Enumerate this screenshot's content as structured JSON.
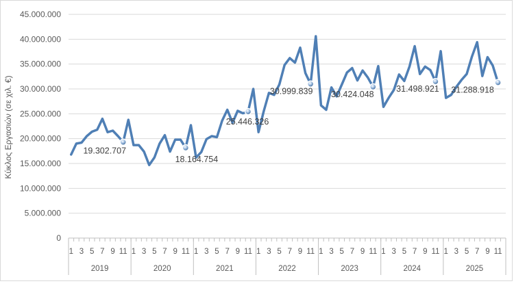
{
  "chart_data": {
    "type": "line",
    "ylabel": "Κύκλος Εργασιών (σε χιλ. €)",
    "ylim": [
      0,
      45000000
    ],
    "yticks": [
      0,
      5000000,
      10000000,
      15000000,
      20000000,
      25000000,
      30000000,
      35000000,
      40000000,
      45000000
    ],
    "ytick_labels": [
      "0",
      "5.000.000",
      "10.000.000",
      "15.000.000",
      "20.000.000",
      "25.000.000",
      "30.000.000",
      "35.000.000",
      "40.000.000",
      "45.000.000"
    ],
    "years": [
      "2019",
      "2020",
      "2021",
      "2022",
      "2023",
      "2024",
      "2025"
    ],
    "month_tick_labels": [
      "1",
      "3",
      "5",
      "7",
      "9",
      "11"
    ],
    "series": [
      {
        "name": "Κύκλος Εργασιών",
        "color": "#4f7fb5",
        "values": [
          16800000,
          19000000,
          19200000,
          20500000,
          21400000,
          21800000,
          24000000,
          21300000,
          21600000,
          20500000,
          19302707,
          23800000,
          18700000,
          18700000,
          17400000,
          14700000,
          16200000,
          19000000,
          20700000,
          17400000,
          19800000,
          19800000,
          18164754,
          22700000,
          16200000,
          17300000,
          19900000,
          20500000,
          20300000,
          23600000,
          25800000,
          23200000,
          25600000,
          25100000,
          25446326,
          30000000,
          21300000,
          25500000,
          29200000,
          28800000,
          30900000,
          34800000,
          36200000,
          35300000,
          38300000,
          33200000,
          30999839,
          40600000,
          26700000,
          25800000,
          30300000,
          28500000,
          30900000,
          33300000,
          34200000,
          31700000,
          33700000,
          32300000,
          30424048,
          34600000,
          26400000,
          28200000,
          29800000,
          32900000,
          31600000,
          34500000,
          38600000,
          33000000,
          34500000,
          33800000,
          31498921,
          37600000,
          28200000,
          28800000,
          30400000,
          31800000,
          33000000,
          36500000,
          39400000,
          32600000,
          36400000,
          34700000,
          31288918
        ]
      }
    ],
    "labeled_points": [
      {
        "index": 10,
        "label": "19.302.707"
      },
      {
        "index": 22,
        "label": "18.164.754"
      },
      {
        "index": 34,
        "label": "25.446.326"
      },
      {
        "index": 46,
        "label": "30.999.839"
      },
      {
        "index": 58,
        "label": "30.424.048"
      },
      {
        "index": 70,
        "label": "31.498.921"
      },
      {
        "index": 82,
        "label": "31.288.918"
      }
    ]
  }
}
